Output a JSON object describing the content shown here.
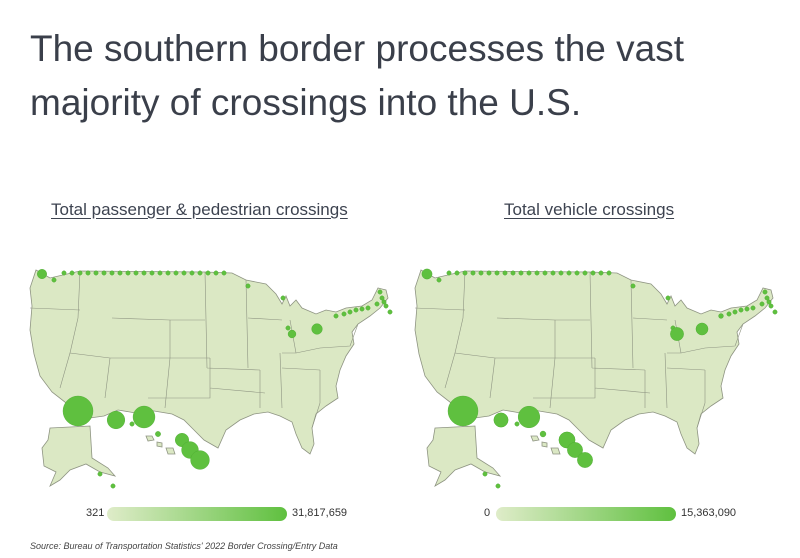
{
  "title": "The southern border processes the vast majority of crossings into the U.S.",
  "source": "Source: Bureau of Transportation Statistics' 2022 Border Crossing/Entry Data",
  "colors": {
    "land": "#dbe8c4",
    "state_border": "#8e9482",
    "bubble": "#5fc03f",
    "legend_low": "#dfecc9",
    "legend_high": "#5fc03f"
  },
  "panels": [
    {
      "title": "Total passenger & pedestrian crossings",
      "legend": {
        "min_label": "321",
        "max_label": "31,817,659",
        "min": 321,
        "max": 31817659
      },
      "ports": [
        {
          "region": "Washington (Pacific)",
          "value": 3200000
        },
        {
          "region": "Washington interior",
          "value": 150000
        },
        {
          "region": "Northern border ports",
          "value": 60000
        },
        {
          "region": "Michigan",
          "value": 2200000
        },
        {
          "region": "New York (Buffalo)",
          "value": 4000000
        },
        {
          "region": "New York north",
          "value": 300000
        },
        {
          "region": "Maine",
          "value": 200000
        },
        {
          "region": "California",
          "value": 31817659
        },
        {
          "region": "Arizona",
          "value": 11000000
        },
        {
          "region": "New Mexico",
          "value": 250000
        },
        {
          "region": "El Paso, Texas",
          "value": 17000000
        },
        {
          "region": "Del Rio, Texas",
          "value": 1000000
        },
        {
          "region": "Laredo, Texas",
          "value": 6500000
        },
        {
          "region": "Rio Grande Valley, Texas",
          "value": 10000000
        },
        {
          "region": "Brownsville, Texas",
          "value": 12500000
        },
        {
          "region": "Alaska",
          "value": 40000
        }
      ]
    },
    {
      "title": "Total vehicle crossings",
      "legend": {
        "min_label": "0",
        "max_label": "15,363,090",
        "min": 0,
        "max": 15363090
      },
      "ports": [
        {
          "region": "Washington (Pacific)",
          "value": 1800000
        },
        {
          "region": "Washington interior",
          "value": 80000
        },
        {
          "region": "Northern border ports",
          "value": 30000
        },
        {
          "region": "Michigan",
          "value": 3000000
        },
        {
          "region": "New York (Buffalo)",
          "value": 2500000
        },
        {
          "region": "New York north",
          "value": 400000
        },
        {
          "region": "Maine",
          "value": 150000
        },
        {
          "region": "California",
          "value": 15363090
        },
        {
          "region": "Arizona",
          "value": 3500000
        },
        {
          "region": "New Mexico",
          "value": 100000
        },
        {
          "region": "El Paso, Texas",
          "value": 8000000
        },
        {
          "region": "Del Rio, Texas",
          "value": 600000
        },
        {
          "region": "Laredo, Texas",
          "value": 4500000
        },
        {
          "region": "Rio Grande Valley, Texas",
          "value": 4000000
        },
        {
          "region": "Brownsville, Texas",
          "value": 4000000
        },
        {
          "region": "Alaska",
          "value": 20000
        }
      ]
    }
  ]
}
